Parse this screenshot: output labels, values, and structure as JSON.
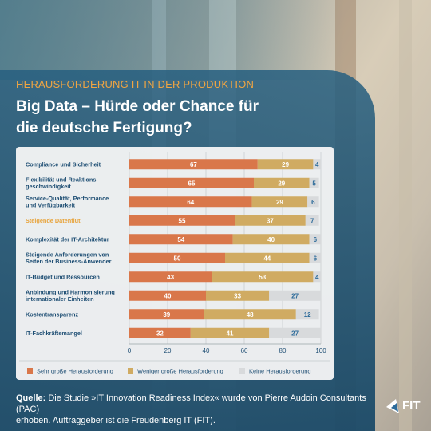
{
  "header": {
    "category": "HERAUSFORDERUNG IT IN DER PRODUKTION",
    "title_line1": "Big Data – Hürde oder Chance für",
    "title_line2": "die deutsche Fertigung?"
  },
  "footer": {
    "source_label": "Quelle:",
    "source_line1": " Die Studie »IT Innovation Readiness Index« wurde von Pierre Audoin Consultants (PAC)",
    "source_line2": "erhoben. Auftraggeber ist die Freudenberg IT (FIT)."
  },
  "logo": {
    "text": "FIT"
  },
  "colors": {
    "sehr": "#d9774a",
    "weniger": "#d0ab62",
    "keine": "#d8dadc",
    "keine_text": "#2c6b9a",
    "highlight": "#e8a33a",
    "label": "#1f4f74"
  },
  "chart_data": {
    "type": "bar",
    "orientation": "horizontal",
    "stacked": true,
    "categories": [
      [
        "Compliance und Sicherheit"
      ],
      [
        "Flexibilität und Reaktions-",
        "geschwindigkeit"
      ],
      [
        "Service-Qualität, Performance",
        "und Verfügbarkeit"
      ],
      [
        "Steigende Datenflut"
      ],
      [
        "Komplexität der IT-Architektur"
      ],
      [
        "Steigende Anforderungen von",
        "Seiten der Business-Anwender"
      ],
      [
        "IT-Budget und Ressourcen"
      ],
      [
        "Anbindung und Harmonisierung",
        "internationaler Einheiten"
      ],
      [
        "Kostentransparenz"
      ],
      [
        "IT-Fachkräftemangel"
      ]
    ],
    "highlighted_category_index": 3,
    "series": [
      {
        "name": "Sehr große Herausforderung",
        "values": [
          67,
          65,
          64,
          55,
          54,
          50,
          43,
          40,
          39,
          32
        ]
      },
      {
        "name": "Weniger große Herausforderung",
        "values": [
          29,
          29,
          29,
          37,
          40,
          44,
          53,
          33,
          48,
          41
        ]
      },
      {
        "name": "Keine Herausforderung",
        "values": [
          4,
          5,
          6,
          7,
          6,
          6,
          4,
          27,
          12,
          27
        ]
      }
    ],
    "xlim": [
      0,
      100
    ],
    "xticks": [
      0,
      20,
      40,
      60,
      80,
      100
    ],
    "grid": true,
    "legend": "bottom"
  }
}
